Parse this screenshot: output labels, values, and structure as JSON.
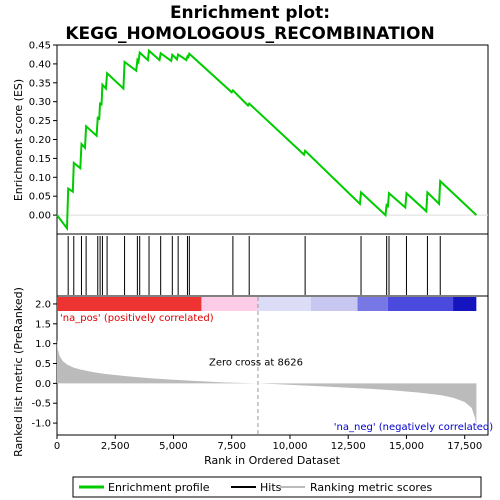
{
  "chart_data": {
    "type": "line",
    "title_line1": "Enrichment plot:",
    "title_line2": "KEGG_HOMOLOGOUS_RECOMBINATION",
    "xlabel": "Rank in Ordered Dataset",
    "ylabel_top": "Enrichment score (ES)",
    "ylabel_bottom": "Ranked list metric (PreRanked)",
    "xlim": [
      0,
      18500
    ],
    "x_ticks": [
      0,
      2500,
      5000,
      7500,
      10000,
      12500,
      15000,
      17500
    ],
    "x_tick_labels": [
      "0",
      "2,500",
      "5,000",
      "7,500",
      "10,000",
      "12,500",
      "15,000",
      "17,500"
    ],
    "es_ylim": [
      -0.05,
      0.45
    ],
    "es_ticks": [
      0.0,
      0.05,
      0.1,
      0.15,
      0.2,
      0.25,
      0.3,
      0.35,
      0.4,
      0.45
    ],
    "es_tick_labels": [
      "0.00",
      "0.05",
      "0.10",
      "0.15",
      "0.20",
      "0.25",
      "0.30",
      "0.35",
      "0.40",
      "0.45"
    ],
    "metric_ylim": [
      -1.3,
      2.2
    ],
    "metric_ticks": [
      -1.0,
      -0.5,
      0.0,
      0.5,
      1.0,
      1.5,
      2.0
    ],
    "metric_tick_labels": [
      "-1.0",
      "-0.5",
      "0.0",
      "0.5",
      "1.0",
      "1.5",
      "2.0"
    ],
    "hits": [
      480,
      720,
      1050,
      1250,
      1750,
      1850,
      1950,
      2150,
      2900,
      3450,
      3550,
      3950,
      4450,
      4950,
      5200,
      5600,
      5680,
      7550,
      8250,
      10650,
      13050,
      14150,
      14250,
      15000,
      15900,
      16450
    ],
    "es_profile": [
      [
        0,
        0.0
      ],
      [
        430,
        -0.035
      ],
      [
        480,
        0.07
      ],
      [
        680,
        0.062
      ],
      [
        720,
        0.138
      ],
      [
        1000,
        0.124
      ],
      [
        1050,
        0.188
      ],
      [
        1200,
        0.178
      ],
      [
        1250,
        0.235
      ],
      [
        1700,
        0.21
      ],
      [
        1750,
        0.26
      ],
      [
        1810,
        0.252
      ],
      [
        1850,
        0.298
      ],
      [
        1910,
        0.29
      ],
      [
        1950,
        0.345
      ],
      [
        2100,
        0.335
      ],
      [
        2150,
        0.375
      ],
      [
        2850,
        0.335
      ],
      [
        2900,
        0.405
      ],
      [
        3400,
        0.382
      ],
      [
        3450,
        0.41
      ],
      [
        3500,
        0.405
      ],
      [
        3550,
        0.43
      ],
      [
        3900,
        0.41
      ],
      [
        3950,
        0.435
      ],
      [
        4400,
        0.41
      ],
      [
        4450,
        0.428
      ],
      [
        4900,
        0.408
      ],
      [
        4950,
        0.424
      ],
      [
        5150,
        0.412
      ],
      [
        5200,
        0.425
      ],
      [
        5550,
        0.41
      ],
      [
        5600,
        0.42
      ],
      [
        5640,
        0.418
      ],
      [
        5680,
        0.427
      ],
      [
        7500,
        0.325
      ],
      [
        7550,
        0.33
      ],
      [
        8200,
        0.29
      ],
      [
        8250,
        0.295
      ],
      [
        10600,
        0.16
      ],
      [
        10650,
        0.17
      ],
      [
        13000,
        0.03
      ],
      [
        13050,
        0.06
      ],
      [
        14100,
        0.0
      ],
      [
        14150,
        0.03
      ],
      [
        14200,
        0.02
      ],
      [
        14250,
        0.058
      ],
      [
        14950,
        0.02
      ],
      [
        15000,
        0.058
      ],
      [
        15850,
        0.01
      ],
      [
        15900,
        0.06
      ],
      [
        16400,
        0.03
      ],
      [
        16450,
        0.09
      ],
      [
        18000,
        0.0
      ]
    ],
    "metric_profile": [
      [
        0,
        1.12
      ],
      [
        40,
        0.85
      ],
      [
        120,
        0.68
      ],
      [
        250,
        0.56
      ],
      [
        450,
        0.47
      ],
      [
        700,
        0.4
      ],
      [
        1000,
        0.35
      ],
      [
        1500,
        0.29
      ],
      [
        2000,
        0.24
      ],
      [
        3000,
        0.18
      ],
      [
        4000,
        0.13
      ],
      [
        5000,
        0.09
      ],
      [
        6000,
        0.06
      ],
      [
        7000,
        0.03
      ],
      [
        8000,
        0.01
      ],
      [
        8626,
        0.0
      ],
      [
        9500,
        -0.02
      ],
      [
        10500,
        -0.05
      ],
      [
        11500,
        -0.08
      ],
      [
        12500,
        -0.11
      ],
      [
        13500,
        -0.14
      ],
      [
        14500,
        -0.18
      ],
      [
        15500,
        -0.23
      ],
      [
        16500,
        -0.3
      ],
      [
        17000,
        -0.36
      ],
      [
        17500,
        -0.47
      ],
      [
        17800,
        -0.62
      ],
      [
        17950,
        -0.88
      ],
      [
        18000,
        -1.2
      ]
    ],
    "zero_cross_x": 8626,
    "zero_cross_label": "Zero cross at 8626",
    "pos_label": "'na_pos' (positively correlated)",
    "neg_label": "'na_neg' (negatively correlated)",
    "rank_bar_segments": [
      {
        "from": 0,
        "to": 6200,
        "color": "#ee3333"
      },
      {
        "from": 6200,
        "to": 8626,
        "color": "#ffcce8"
      },
      {
        "from": 8626,
        "to": 10900,
        "color": "#dcdcf6"
      },
      {
        "from": 10900,
        "to": 12900,
        "color": "#c7c7f2"
      },
      {
        "from": 12900,
        "to": 14200,
        "color": "#7777e6"
      },
      {
        "from": 14200,
        "to": 17000,
        "color": "#4a4ade"
      },
      {
        "from": 17000,
        "to": 18000,
        "color": "#1515c0"
      }
    ],
    "legend": [
      {
        "label": "Enrichment profile",
        "color": "#00cc00"
      },
      {
        "label": "Hits",
        "color": "#000000"
      },
      {
        "label": "Ranking metric scores",
        "color": "#bbbbbb"
      }
    ],
    "colors": {
      "es_line": "#00cc00",
      "metric_fill": "#bbbbbb",
      "zero_line": "#999999",
      "pos_text": "#dd0000",
      "neg_text": "#0000cc"
    }
  }
}
